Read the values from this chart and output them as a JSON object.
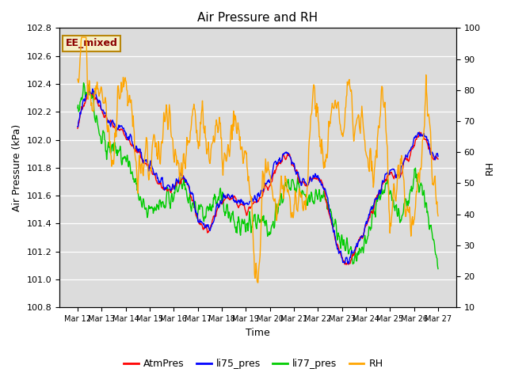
{
  "title": "Air Pressure and RH",
  "xlabel": "Time",
  "ylabel_left": "Air Pressure (kPa)",
  "ylabel_right": "RH",
  "annotation": "EE_mixed",
  "ylim_left": [
    100.8,
    102.8
  ],
  "ylim_right": [
    10,
    100
  ],
  "yticks_left": [
    100.8,
    101.0,
    101.2,
    101.4,
    101.6,
    101.8,
    102.0,
    102.2,
    102.4,
    102.6,
    102.8
  ],
  "yticks_right": [
    10,
    20,
    30,
    40,
    50,
    60,
    70,
    80,
    90,
    100
  ],
  "xtick_labels": [
    "Mar 12",
    "Mar 13",
    "Mar 14",
    "Mar 15",
    "Mar 16",
    "Mar 17",
    "Mar 18",
    "Mar 19",
    "Mar 20",
    "Mar 21",
    "Mar 22",
    "Mar 23",
    "Mar 24",
    "Mar 25",
    "Mar 26",
    "Mar 27"
  ],
  "colors": {
    "AtmPres": "#ff0000",
    "li75_pres": "#0000ff",
    "li77_pres": "#00cc00",
    "RH": "#ffa500"
  },
  "bg_color": "#dcdcdc",
  "linewidth": 1.0,
  "n_points": 720,
  "annotation_facecolor": "#f5f0c8",
  "annotation_edgecolor": "#b8860b",
  "annotation_textcolor": "#8b0000"
}
